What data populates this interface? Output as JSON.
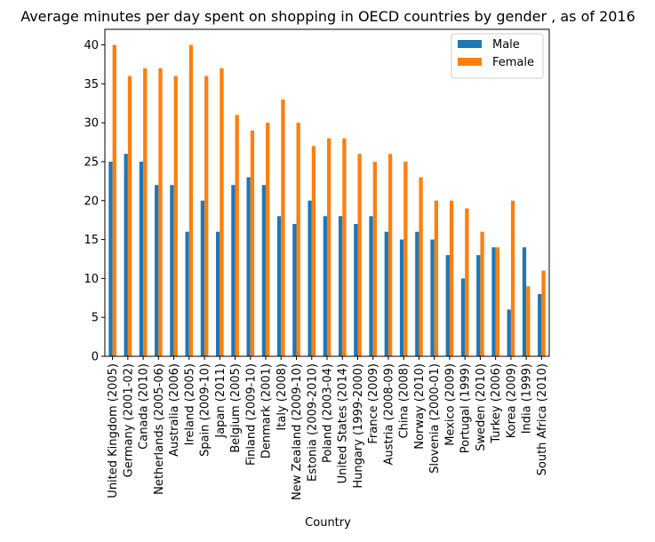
{
  "chart_data": {
    "type": "bar",
    "title": "Average minutes per day spent on shopping in OECD countries by gender , as of 2016",
    "xlabel": "Country",
    "ylabel": "",
    "ylim": [
      0,
      42
    ],
    "yticks": [
      0,
      5,
      10,
      15,
      20,
      25,
      30,
      35,
      40
    ],
    "grid": false,
    "legend_position": "top-right",
    "categories": [
      "United Kingdom (2005)",
      "Germany (2001-02)",
      "Canada (2010)",
      "Netherlands (2005-06)",
      "Australia (2006)",
      "Ireland (2005)",
      "Spain (2009-10)",
      "Japan (2011)",
      "Belgium (2005)",
      "Finland (2009-10)",
      "Denmark (2001)",
      "Italy (2008)",
      "New Zealand (2009-10)",
      "Estonia (2009-2010)",
      "Poland (2003-04)",
      "United States (2014)",
      "Hungary (1999-2000)",
      "France (2009)",
      "Austria (2008-09)",
      "China (2008)",
      "Norway (2010)",
      "Slovenia (2000-01)",
      "Mexico (2009)",
      "Portugal (1999)",
      "Sweden (2010)",
      "Turkey (2006)",
      "Korea (2009)",
      "India (1999)",
      "South Africa (2010)"
    ],
    "series": [
      {
        "name": "Male",
        "color": "#1f77b4",
        "values": [
          25,
          26,
          25,
          22,
          22,
          16,
          20,
          16,
          22,
          23,
          22,
          18,
          17,
          20,
          18,
          18,
          17,
          18,
          16,
          15,
          16,
          15,
          13,
          10,
          13,
          14,
          6,
          14,
          8
        ]
      },
      {
        "name": "Female",
        "color": "#ff7f0e",
        "values": [
          40,
          36,
          37,
          37,
          36,
          40,
          36,
          37,
          31,
          29,
          30,
          33,
          30,
          27,
          28,
          28,
          26,
          25,
          26,
          25,
          23,
          20,
          20,
          19,
          16,
          14,
          20,
          9,
          11
        ]
      }
    ]
  }
}
